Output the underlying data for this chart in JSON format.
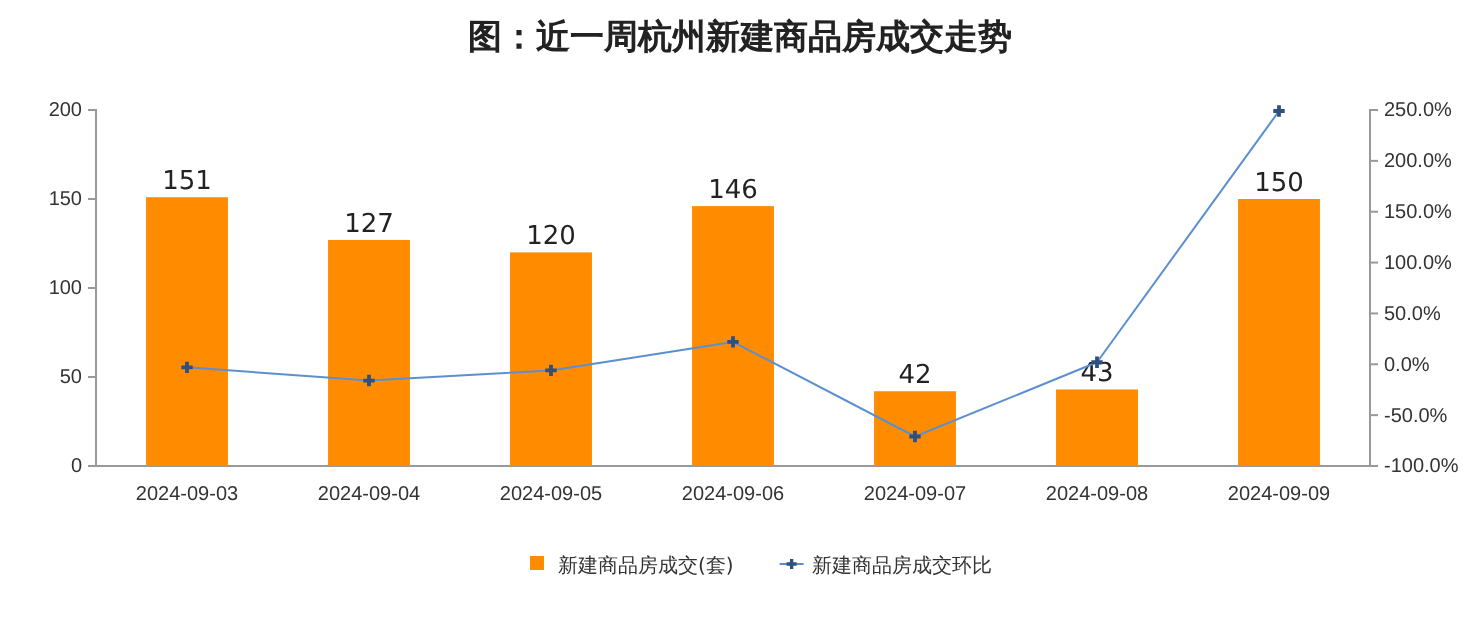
{
  "chart_data": {
    "type": "bar",
    "title": "图：近一周杭州新建商品房成交走势",
    "categories": [
      "2024-09-03",
      "2024-09-04",
      "2024-09-05",
      "2024-09-06",
      "2024-09-07",
      "2024-09-08",
      "2024-09-09"
    ],
    "series": [
      {
        "name": "新建商品房成交(套)",
        "color": "#ff8c00",
        "values": [
          151,
          127,
          120,
          146,
          42,
          43,
          150
        ],
        "value_labels": [
          "151",
          "127",
          "120",
          "146",
          "42",
          "43",
          "150"
        ]
      },
      {
        "name": "新建商品房成交环比",
        "type": "line",
        "axis": "y2",
        "color": "#5b8fd0",
        "marker": "cross",
        "values": [
          -3,
          -16,
          -6,
          22,
          -71,
          2,
          249
        ]
      }
    ],
    "ylim": [
      0,
      200
    ],
    "yticks": [
      0,
      50,
      100,
      150,
      200
    ],
    "y2lim": [
      -100,
      250
    ],
    "y2ticks": [
      {
        "value": -100,
        "label": "-100.0%"
      },
      {
        "value": -50,
        "label": "-50.0%"
      },
      {
        "value": 0,
        "label": "0.0%"
      },
      {
        "value": 50,
        "label": "50.0%"
      },
      {
        "value": 100,
        "label": "100.0%"
      },
      {
        "value": 150,
        "label": "150.0%"
      },
      {
        "value": 200,
        "label": "200.0%"
      },
      {
        "value": 250,
        "label": "250.0%"
      }
    ],
    "legend": "bottom"
  }
}
